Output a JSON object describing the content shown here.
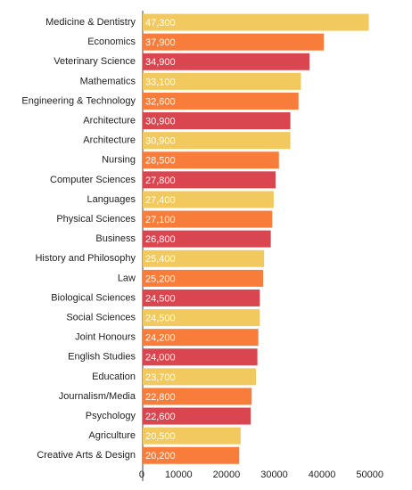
{
  "chart_data": {
    "type": "bar",
    "orientation": "horizontal",
    "categories": [
      "Medicine & Dentistry",
      "Economics",
      "Veterinary Science",
      "Mathematics",
      "Engineering & Technology",
      "Architecture",
      "Architecture",
      "Nursing",
      "Computer Sciences",
      "Languages",
      "Physical Sciences",
      "Business",
      "History and Philosophy",
      "Law",
      "Biological Sciences",
      "Social Sciences",
      "Joint Honours",
      "English Studies",
      "Education",
      "Journalism/Media",
      "Psychology",
      "Agriculture",
      "Creative Arts & Design"
    ],
    "values": [
      47300,
      37900,
      34900,
      33100,
      32600,
      30900,
      30900,
      28500,
      27800,
      27400,
      27100,
      26800,
      25400,
      25200,
      24500,
      24500,
      24200,
      24000,
      23700,
      22800,
      22600,
      20500,
      20200
    ],
    "value_labels": [
      "47,300",
      "37,900",
      "34,900",
      "33,100",
      "32,600",
      "30,900",
      "30,900",
      "28,500",
      "27,800",
      "27,400",
      "27,100",
      "26,800",
      "25,400",
      "25,200",
      "24,500",
      "24,500",
      "24,200",
      "24,000",
      "23,700",
      "22,800",
      "22,600",
      "20,500",
      "20,200"
    ],
    "colors": [
      "#f2c95e",
      "#f87c3a",
      "#d9464f"
    ],
    "xlim": [
      0,
      50000
    ],
    "xticks": [
      0,
      10000,
      20000,
      30000,
      40000,
      50000
    ]
  }
}
